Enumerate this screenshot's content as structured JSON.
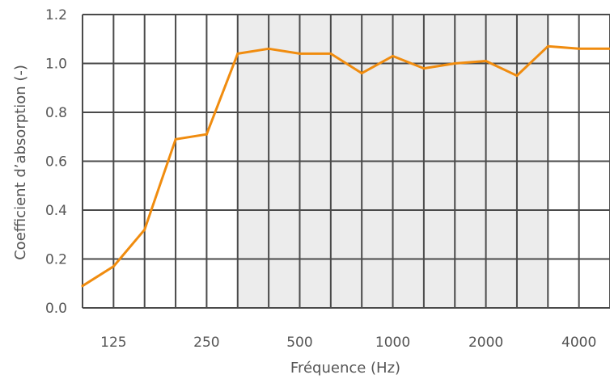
{
  "chart_data": {
    "type": "line",
    "xlabel": "Fréquence (Hz)",
    "ylabel": "Coefficient d’absorption (-)",
    "ylim": [
      0,
      1.2
    ],
    "yticks": [
      "0.0",
      "0.2",
      "0.4",
      "0.6",
      "0.8",
      "1.0",
      "1.2"
    ],
    "x_scale": "log (third-octave bands)",
    "x_tick_labels": [
      "125",
      "250",
      "500",
      "1000",
      "2000",
      "4000"
    ],
    "shaded_region_hz": [
      315,
      3150
    ],
    "grid": true,
    "line_color": "#f08c0f",
    "shade_color": "#ececec",
    "series": [
      {
        "x": [
          100,
          125,
          160,
          200,
          250,
          315,
          400,
          500,
          630,
          800,
          1000,
          1250,
          1600,
          2000,
          2500,
          3150,
          4000,
          5000
        ],
        "values": [
          0.09,
          0.17,
          0.32,
          0.69,
          0.71,
          1.04,
          1.06,
          1.04,
          1.04,
          0.96,
          1.03,
          0.98,
          1.0,
          1.01,
          0.95,
          1.07,
          1.06,
          1.06
        ]
      }
    ]
  }
}
